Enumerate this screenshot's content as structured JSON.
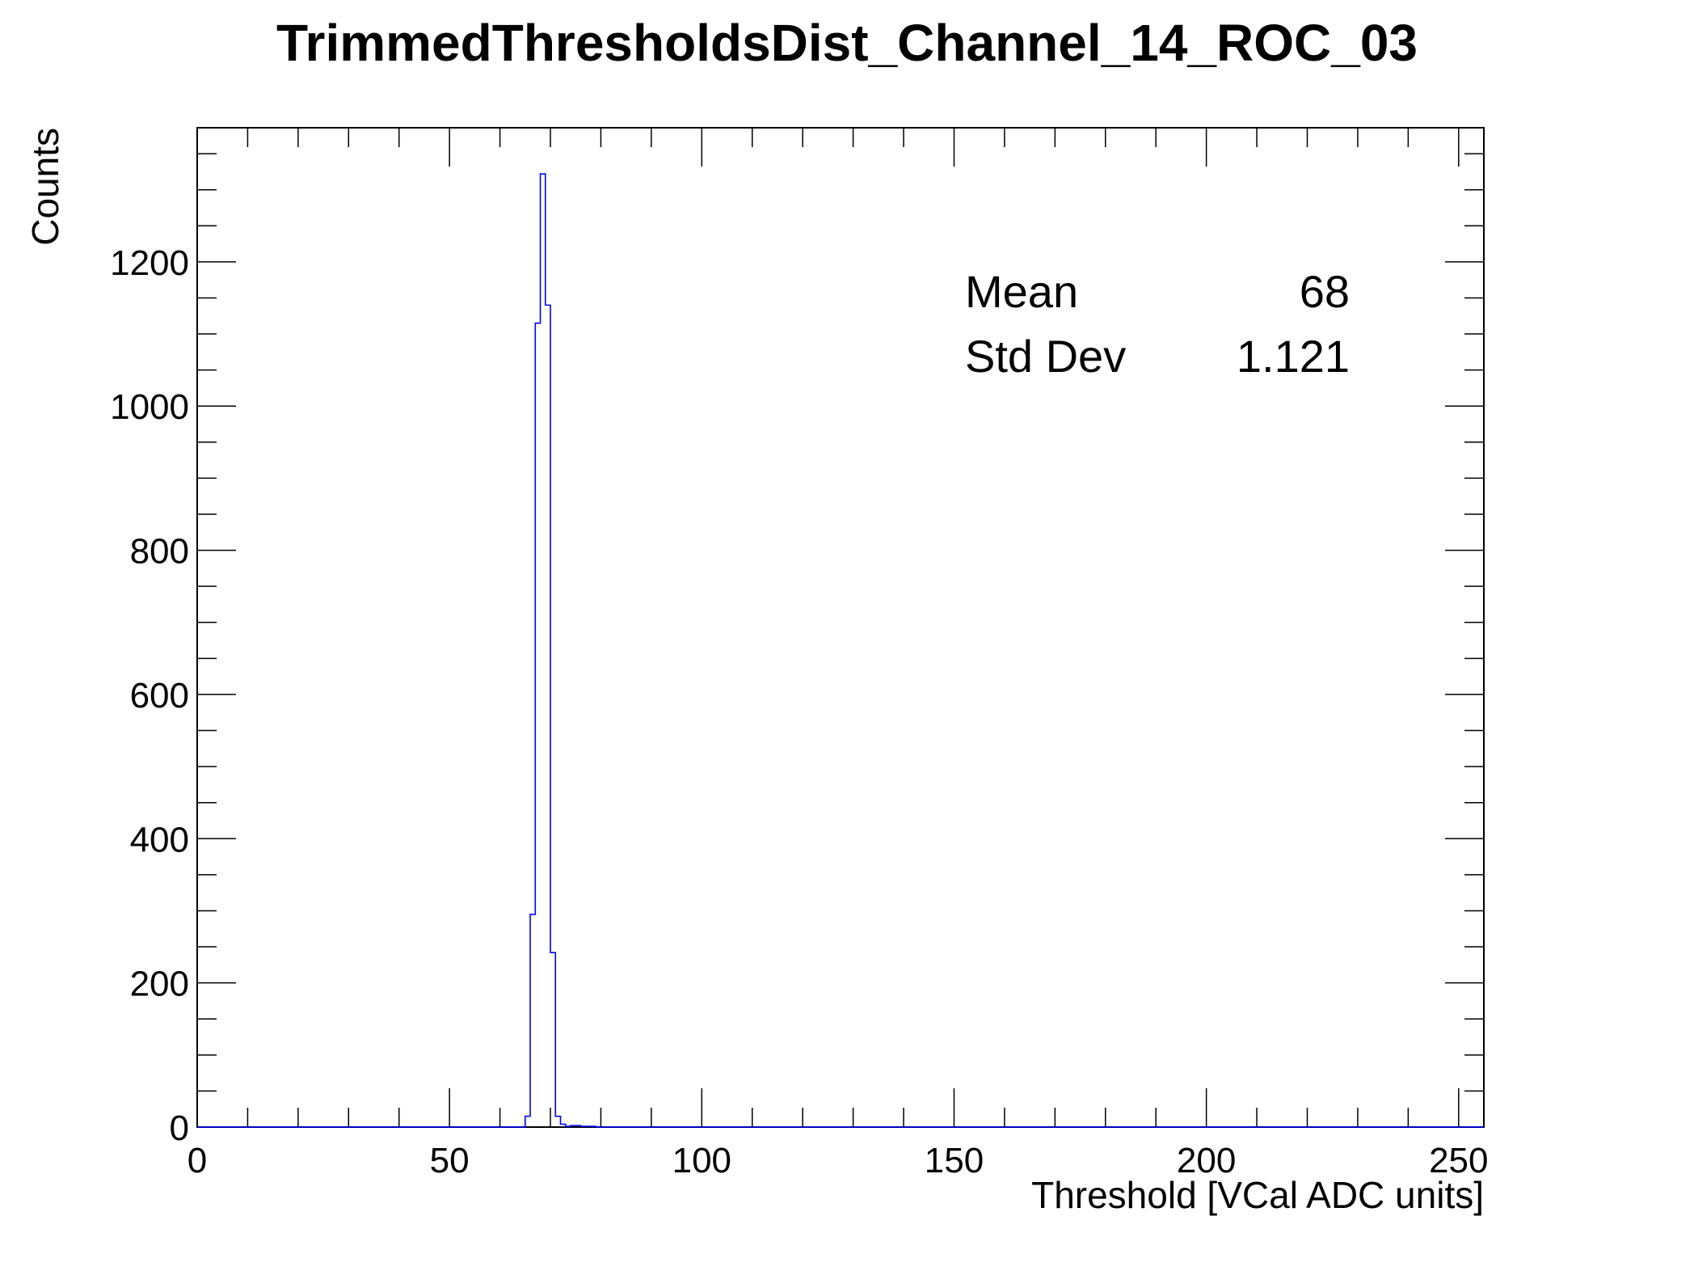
{
  "chart_data": {
    "type": "histogram",
    "title": "TrimmedThresholdsDist_Channel_14_ROC_03",
    "xlabel": "Threshold [VCal ADC units]",
    "ylabel": "Counts",
    "xlim": [
      0,
      255
    ],
    "ylim": [
      0,
      1386
    ],
    "x_ticks": [
      0,
      50,
      100,
      150,
      200,
      250
    ],
    "y_ticks": [
      0,
      200,
      400,
      600,
      800,
      1000,
      1200
    ],
    "line_color": "#0000ff",
    "series": [
      {
        "bins": [
          {
            "x": 65,
            "count": 15
          },
          {
            "x": 66,
            "count": 295
          },
          {
            "x": 67,
            "count": 1115
          },
          {
            "x": 68,
            "count": 1322
          },
          {
            "x": 69,
            "count": 1140
          },
          {
            "x": 70,
            "count": 242
          },
          {
            "x": 71,
            "count": 15
          },
          {
            "x": 72,
            "count": 4
          },
          {
            "x": 73,
            "count": 1
          },
          {
            "x": 74,
            "count": 2
          },
          {
            "x": 75,
            "count": 2
          },
          {
            "x": 76,
            "count": 1
          },
          {
            "x": 77,
            "count": 1
          },
          {
            "x": 78,
            "count": 1
          }
        ]
      }
    ],
    "stats": [
      {
        "label": "Mean",
        "value": "68"
      },
      {
        "label": "Std Dev",
        "value": "1.121"
      }
    ],
    "grid": false
  }
}
